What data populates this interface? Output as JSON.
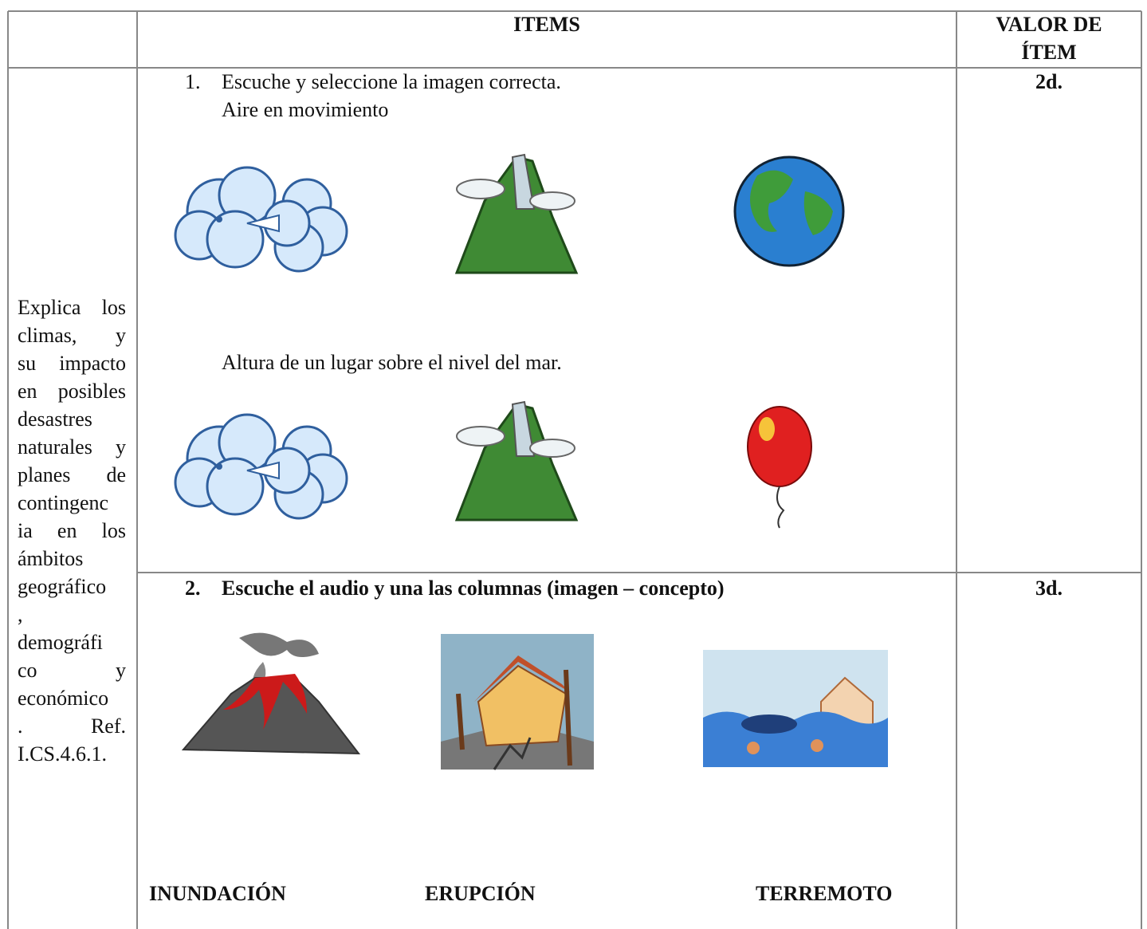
{
  "header": {
    "items": "ITEMS",
    "value": [
      "VALOR DE",
      "ÍTEM"
    ]
  },
  "left_cell": {
    "lines": [
      "Explica los",
      "climas, y",
      "su impacto",
      "en posibles",
      "desastres",
      "naturales y",
      "planes de",
      "contingenc",
      "ia en los",
      "ámbitos",
      "geográfico",
      ",",
      "demográfi",
      "co y",
      "económico",
      ". Ref.",
      "I.CS.4.6.1."
    ]
  },
  "items": [
    {
      "number": "1.",
      "instruction": "Escuche y seleccione la imagen correcta.",
      "prompts": [
        "Aire en movimiento",
        "Altura de un lugar sobre el nivel del mar."
      ],
      "value": "2d."
    },
    {
      "number": "2.",
      "instruction": "Escuche el audio y una las columnas (imagen – concepto)",
      "labels": [
        "INUNDACIÓN",
        "ERUPCIÓN",
        "TERREMOTO"
      ],
      "value": "3d."
    }
  ]
}
